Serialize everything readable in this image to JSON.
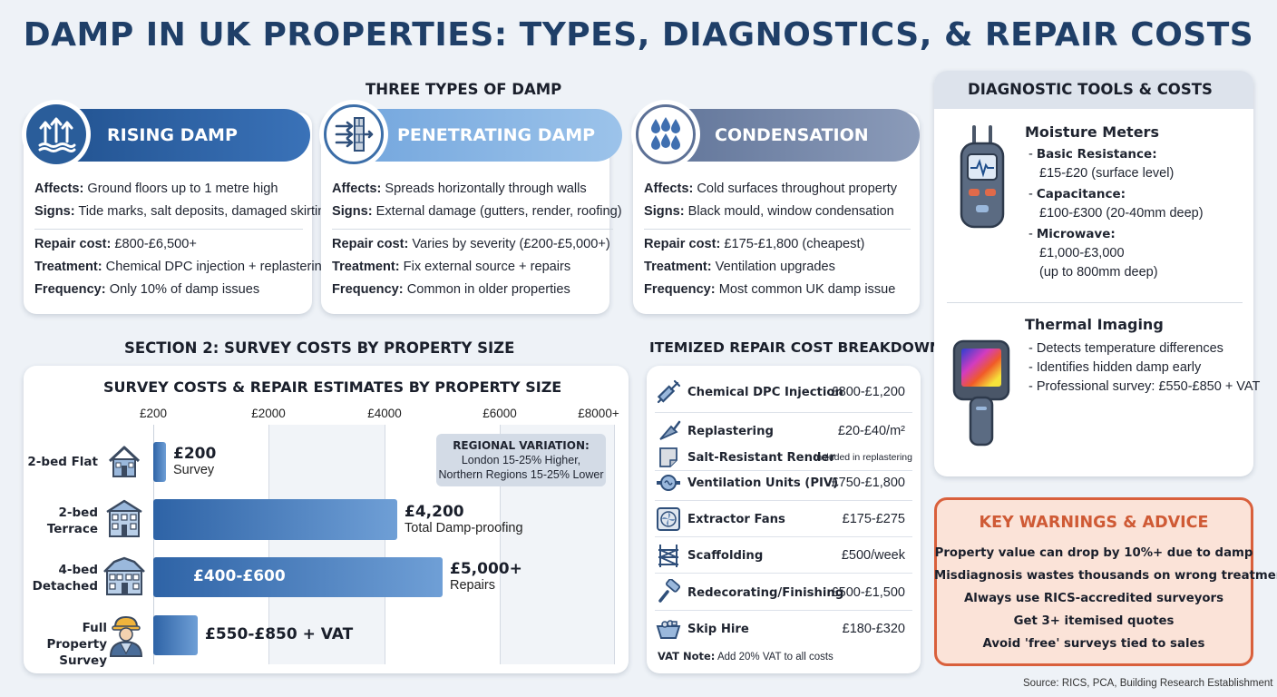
{
  "title": "DAMP IN UK PROPERTIES: TYPES, DIAGNOSTICS, & REPAIR COSTS",
  "types_heading": "THREE TYPES OF DAMP",
  "damp_types": [
    {
      "name": "RISING DAMP",
      "color": "#2a5d9a",
      "icon": "rising-arrows-icon",
      "affects": "Ground floors up to 1 metre high",
      "signs": "Tide marks, salt deposits, damaged skirting",
      "repair_cost": "£800-£6,500+",
      "treatment": "Chemical DPC injection + replastering",
      "frequency": "Only 10% of damp issues"
    },
    {
      "name": "PENETRATING DAMP",
      "color": "#7faedf",
      "icon": "wall-arrows-icon",
      "affects": "Spreads horizontally through walls",
      "signs": "External damage (gutters, render, roofing)",
      "repair_cost": "Varies by severity (£200-£5,000+)",
      "treatment": "Fix external source + repairs",
      "frequency": "Common in older properties"
    },
    {
      "name": "CONDENSATION",
      "color": "#6f82a6",
      "icon": "water-drops-icon",
      "affects": "Cold surfaces throughout property",
      "signs": "Black mould, window condensation",
      "repair_cost": "£175-£1,800 (cheapest)",
      "treatment": "Ventilation upgrades",
      "frequency": "Most common UK damp issue"
    }
  ],
  "field_labels": {
    "affects": "Affects:",
    "signs": "Signs:",
    "repair_cost": "Repair cost:",
    "treatment": "Treatment:",
    "frequency": "Frequency:"
  },
  "section2_heading": "SECTION 2: SURVEY COSTS BY PROPERTY SIZE",
  "chart_data": {
    "type": "bar",
    "title": "SURVEY COSTS & REPAIR ESTIMATES BY PROPERTY SIZE",
    "x_ticks": [
      "£200",
      "£2000",
      "£4000",
      "£6000",
      "£8000+"
    ],
    "xlim": [
      0,
      8000
    ],
    "categories": [
      "2-bed Flat",
      "2-bed Terrace",
      "4-bed Detached",
      "Full Property Survey"
    ],
    "bars": [
      {
        "label": "2-bed Flat",
        "value": 200,
        "value_label": "£200",
        "sub_label": "Survey"
      },
      {
        "label": "2-bed Terrace",
        "value": 4200,
        "value_label": "£4,200",
        "sub_label": "Total Damp-proofing"
      },
      {
        "label": "4-bed Detached",
        "value": 5000,
        "value_label": "£5,000+",
        "sub_label": "Repairs",
        "inner_label": "£400-£600"
      },
      {
        "label": "Full Property Survey",
        "value": 850,
        "value_label": "£550-£850 + VAT",
        "sub_label": ""
      }
    ],
    "annotation": {
      "title": "REGIONAL VARIATION:",
      "line1": "London 15-25% Higher,",
      "line2": "Northern Regions 15-25% Lower"
    },
    "grid": true
  },
  "row_labels": [
    [
      "2-bed Flat"
    ],
    [
      "2-bed",
      "Terrace"
    ],
    [
      "4-bed",
      "Detached"
    ],
    [
      "Full Property",
      "Survey"
    ]
  ],
  "repair_heading": "ITEMIZED REPAIR COST BREAKDOWN",
  "repairs": [
    {
      "name": "Chemical DPC Injection",
      "cost": "£800-£1,200",
      "icon": "syringe-icon"
    },
    {
      "name": "Replastering",
      "cost": "£20-£40/m²",
      "icon": "trowel-icon"
    },
    {
      "name": "Salt-Resistant Render",
      "cost": "Included in replastering",
      "icon": "render-sheet-icon"
    },
    {
      "name": "Ventilation Units (PIV)",
      "cost": "£750-£1,800",
      "icon": "vent-unit-icon"
    },
    {
      "name": "Extractor Fans",
      "cost": "£175-£275",
      "icon": "fan-icon"
    },
    {
      "name": "Scaffolding",
      "cost": "£500/week",
      "icon": "scaffold-icon"
    },
    {
      "name": "Redecorating/Finishing",
      "cost": "£500-£1,500",
      "icon": "paint-roller-icon"
    },
    {
      "name": "Skip Hire",
      "cost": "£180-£320",
      "icon": "skip-icon"
    }
  ],
  "vat_note": {
    "label": "VAT Note:",
    "text": "Add 20% VAT to all costs"
  },
  "tools_heading": "DIAGNOSTIC TOOLS & COSTS",
  "moisture_meters": {
    "title": "Moisture Meters",
    "items": [
      {
        "name": "Basic Resistance:",
        "lines": [
          "£15-£20 (surface level)"
        ]
      },
      {
        "name": "Capacitance:",
        "lines": [
          "£100-£300 (20-40mm deep)"
        ]
      },
      {
        "name": "Microwave:",
        "lines": [
          "£1,000-£3,000",
          "(up to 800mm deep)"
        ]
      }
    ]
  },
  "thermal_imaging": {
    "title": "Thermal Imaging",
    "items": [
      "Detects temperature differences",
      "Identifies hidden damp early",
      "Professional survey: £550-£850 + VAT"
    ]
  },
  "warnings": {
    "title": "KEY WARNINGS & ADVICE",
    "items": [
      "Property value can drop by 10%+ due to damp",
      "Misdiagnosis wastes thousands on wrong treatments",
      "Always use RICS-accredited surveyors",
      "Get 3+ itemised quotes",
      "Avoid 'free' surveys tied to sales"
    ]
  },
  "source": "Source: RICS, PCA, Building Research Establishment"
}
